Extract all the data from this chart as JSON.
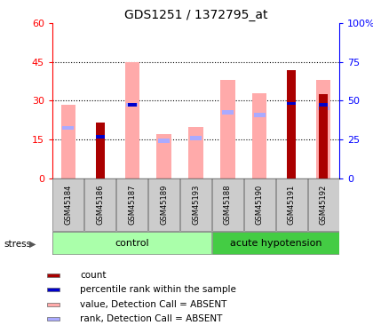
{
  "title": "GDS1251 / 1372795_at",
  "samples": [
    "GSM45184",
    "GSM45186",
    "GSM45187",
    "GSM45189",
    "GSM45193",
    "GSM45188",
    "GSM45190",
    "GSM45191",
    "GSM45192"
  ],
  "groups": [
    "control",
    "control",
    "control",
    "control",
    "control",
    "acute hypotension",
    "acute hypotension",
    "acute hypotension",
    "acute hypotension"
  ],
  "value_absent": [
    28.5,
    0,
    45.0,
    17.0,
    20.0,
    38.0,
    33.0,
    0,
    38.0
  ],
  "rank_absent": [
    19.5,
    0,
    28.5,
    14.5,
    15.5,
    25.5,
    24.5,
    0,
    27.0
  ],
  "count": [
    0,
    21.5,
    0,
    0,
    0,
    0,
    0,
    42.0,
    32.5
  ],
  "percentile_rank": [
    0,
    16.0,
    28.5,
    0,
    0,
    0,
    0,
    29.0,
    28.5
  ],
  "ylim_left": [
    0,
    60
  ],
  "ylim_right": [
    0,
    100
  ],
  "yticks_left": [
    0,
    15,
    30,
    45,
    60
  ],
  "ytick_labels_left": [
    "0",
    "15",
    "30",
    "45",
    "60"
  ],
  "ytick_labels_right": [
    "0",
    "25",
    "50",
    "75",
    "100%"
  ],
  "grid_values": [
    15,
    30,
    45
  ],
  "n_control": 5,
  "n_acute": 4,
  "color_count": "#aa0000",
  "color_percentile": "#0000cc",
  "color_value_absent": "#ffaaaa",
  "color_rank_absent": "#aaaaff",
  "stress_label": "stress",
  "legend_items": [
    "count",
    "percentile rank within the sample",
    "value, Detection Call = ABSENT",
    "rank, Detection Call = ABSENT"
  ],
  "legend_colors": [
    "#aa0000",
    "#0000cc",
    "#ffaaaa",
    "#aaaaff"
  ],
  "bg_color": "#ffffff",
  "label_bg_color": "#cccccc",
  "group_ctrl_color": "#aaffaa",
  "group_acute_color": "#44cc44"
}
